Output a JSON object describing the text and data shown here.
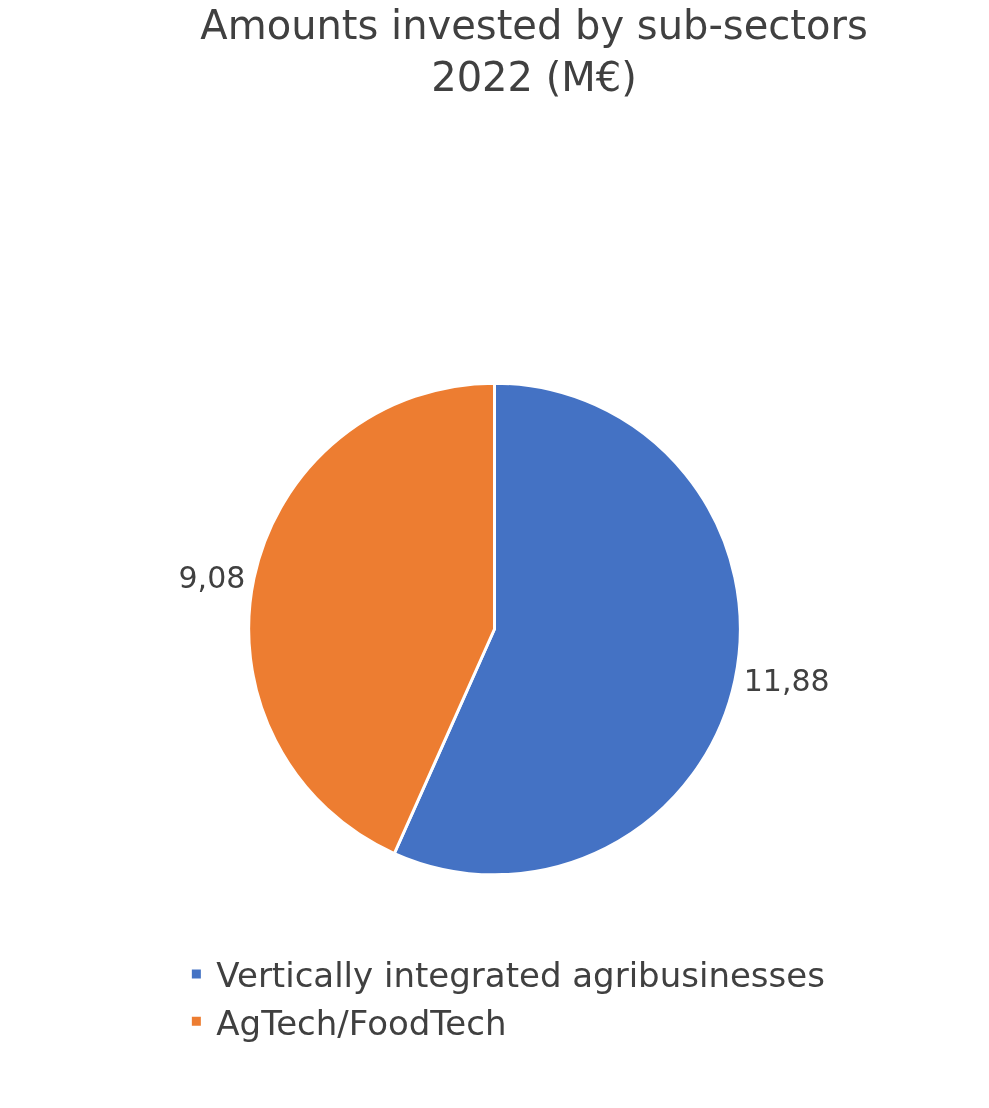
{
  "chart_data": {
    "type": "pie",
    "title": "Amounts invested by sub-sectors\n2022 (M€)",
    "categories": [
      "Vertically integrated agribusinesses",
      "AgTech/FoodTech"
    ],
    "values": [
      11.88,
      9.08
    ],
    "value_labels": [
      "11,88",
      "9,08"
    ],
    "colors": [
      "#4472c4",
      "#ed7d31"
    ],
    "legend": "bottom"
  }
}
